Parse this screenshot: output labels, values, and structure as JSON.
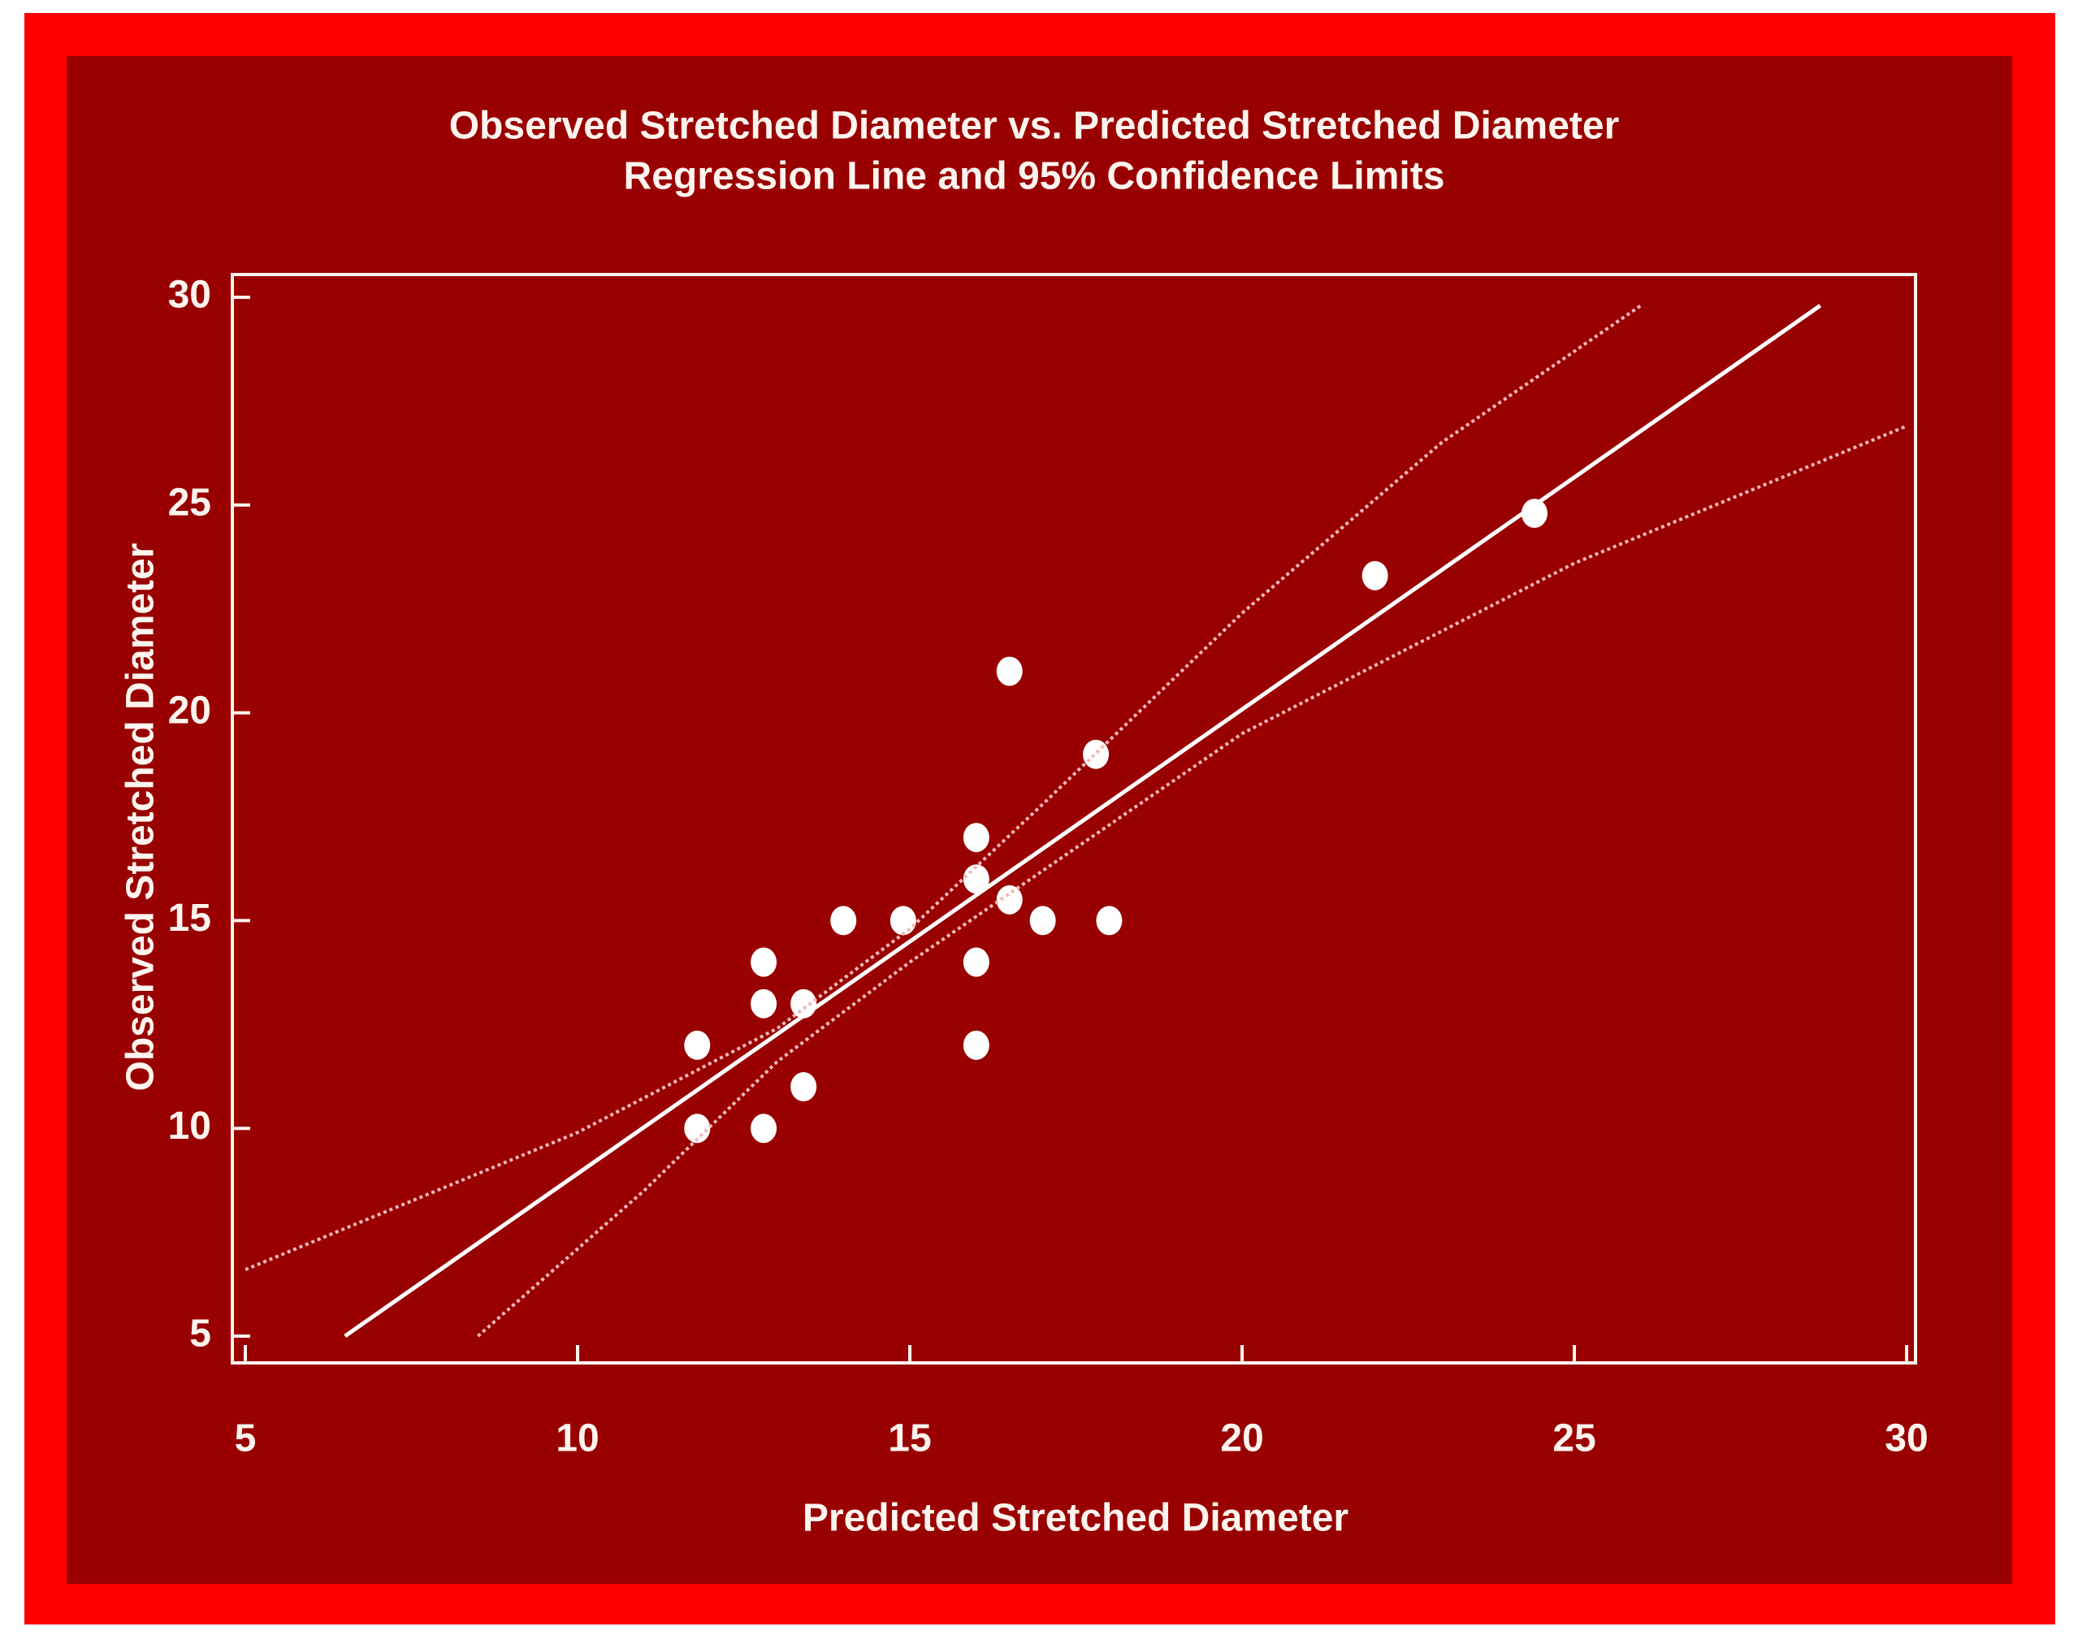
{
  "chart_data": {
    "type": "scatter",
    "title": "Observed Stretched Diameter vs. Predicted Stretched Diameter",
    "subtitle": "Regression Line and 95% Confidence Limits",
    "xlabel": "Predicted Stretched Diameter",
    "ylabel": "Observed Stretched Diameter",
    "xlim": [
      5,
      30
    ],
    "xticks": [
      5,
      10,
      15,
      20,
      25,
      30
    ],
    "ylim": [
      5,
      30
    ],
    "yticks": [
      5,
      10,
      15,
      20,
      25,
      30
    ],
    "grid": false,
    "series": [
      {
        "style": "marker",
        "color": "#ffffff",
        "x": [
          11.8,
          11.8,
          12.8,
          12.8,
          12.8,
          13.4,
          13.4,
          14,
          14.9,
          16,
          16,
          16,
          16,
          16.5,
          16.5,
          17,
          17.8,
          18,
          22,
          24.4
        ],
        "values": [
          12,
          10,
          14,
          13,
          10,
          13,
          11,
          15,
          15,
          17,
          16,
          14,
          12,
          21,
          15.5,
          15,
          19,
          15,
          23.3,
          24.8
        ]
      },
      {
        "style": "solid",
        "color": "#ffffff",
        "x": [
          6.5,
          28.7
        ],
        "values": [
          5,
          29.8
        ]
      },
      {
        "style": "dotted",
        "color": "#f4b8b8",
        "x": [
          5,
          10,
          13,
          15,
          17,
          20,
          23,
          26
        ],
        "values": [
          6.6,
          9.9,
          12.4,
          14.8,
          17.8,
          22.4,
          26.5,
          29.8
        ]
      },
      {
        "style": "dotted",
        "color": "#f4b8b8",
        "x": [
          8.5,
          11,
          13,
          15,
          17,
          20,
          25,
          30
        ],
        "values": [
          5,
          8.5,
          11.6,
          14,
          16.2,
          19.5,
          23.6,
          26.9
        ]
      }
    ]
  }
}
